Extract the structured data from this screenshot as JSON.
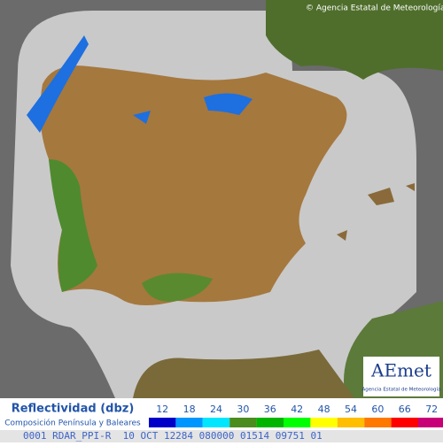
{
  "header": {
    "copyright": "© Agencia Estatal de Meteorología"
  },
  "logo": {
    "name": "AEmet",
    "subtitle": "Agencia Estatal de Meteorología"
  },
  "legend": {
    "title": "Reflectividad (dbz)",
    "subtitle": "Composición Península y Baleares",
    "levels": [
      {
        "value": 12,
        "color": "#0000c8"
      },
      {
        "value": 18,
        "color": "#0096ff"
      },
      {
        "value": 24,
        "color": "#00e6ff"
      },
      {
        "value": 30,
        "color": "#4b8c1e"
      },
      {
        "value": 36,
        "color": "#00b400"
      },
      {
        "value": 42,
        "color": "#00ff00"
      },
      {
        "value": 48,
        "color": "#ffff00"
      },
      {
        "value": 54,
        "color": "#ffbe00"
      },
      {
        "value": 60,
        "color": "#ff7800"
      },
      {
        "value": 66,
        "color": "#ff0000"
      },
      {
        "value": 72,
        "color": "#c80078"
      }
    ]
  },
  "status": "0001 RDAR_PPI-R  10 OCT 12284 080000 01514 09751 01"
}
